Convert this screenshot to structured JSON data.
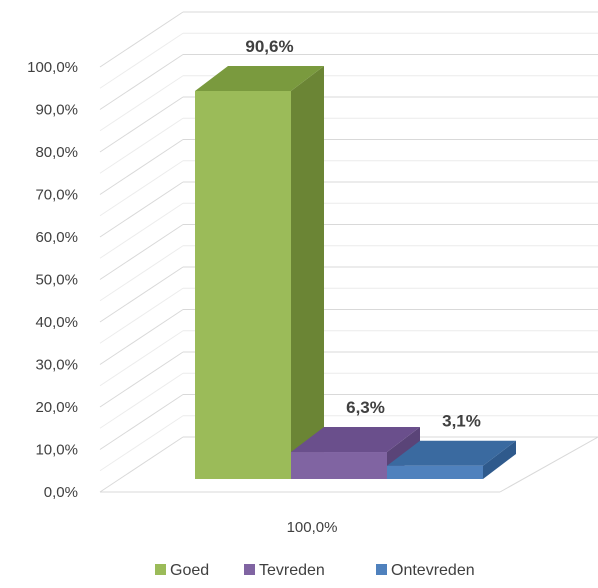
{
  "chart_data": {
    "type": "bar",
    "categories": [
      "100,0%"
    ],
    "series": [
      {
        "name": "Goed",
        "values": [
          90.6
        ],
        "label": "90,6%",
        "color": "#9bbb59",
        "side_color": "#6b8535",
        "top_color": "#7a9a3e"
      },
      {
        "name": "Tevreden",
        "values": [
          6.3
        ],
        "label": "6,3%",
        "color": "#8064a2",
        "side_color": "#5a4478",
        "top_color": "#6a4f8c"
      },
      {
        "name": "Ontevreden",
        "values": [
          3.1
        ],
        "label": "3,1%",
        "color": "#4f81bd",
        "side_color": "#2f5a8c",
        "top_color": "#3a6aa0"
      }
    ],
    "y_ticks": [
      "0,0%",
      "10,0%",
      "20,0%",
      "30,0%",
      "40,0%",
      "50,0%",
      "60,0%",
      "70,0%",
      "80,0%",
      "90,0%",
      "100,0%"
    ],
    "ylim": [
      0,
      100
    ],
    "grid": true,
    "legend_position": "bottom",
    "three_d": true
  }
}
